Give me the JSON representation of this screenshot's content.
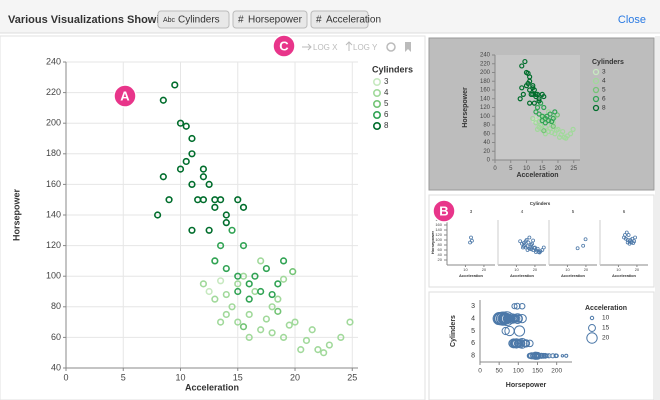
{
  "header": {
    "title": "Various Visualizations Showing",
    "fields": [
      {
        "icon": "Abc",
        "name": "Cylinders"
      },
      {
        "icon": "#",
        "name": "Horsepower"
      },
      {
        "icon": "#",
        "name": "Acceleration"
      }
    ],
    "close": "Close"
  },
  "toolbar": {
    "log_x": "LOG X",
    "log_y": "LOG Y"
  },
  "annotations": [
    "A",
    "B",
    "C"
  ],
  "chart_data": [
    {
      "type": "scatter",
      "x_label": "Acceleration",
      "y_label": "Horsepower",
      "legend_title": "Cylinders",
      "xlim": [
        0,
        25.5
      ],
      "xticks": [
        0,
        5,
        10,
        15,
        20,
        25
      ],
      "ylim": [
        40,
        240
      ],
      "yticks": [
        40,
        60,
        80,
        100,
        120,
        140,
        160,
        180,
        200,
        220,
        240
      ],
      "grid": true,
      "series": [
        {
          "name": "3",
          "color": "#c7e9c0",
          "x": [
            12.5,
            13.5,
            13
          ],
          "values": [
            90,
            97,
            110
          ]
        },
        {
          "name": "4",
          "color": "#a1d99b",
          "x": [
            14,
            15,
            16,
            17,
            18,
            19,
            20,
            21,
            22,
            15,
            16.5,
            14.5,
            17.5,
            19.5,
            21.5,
            23,
            24.8,
            13,
            12,
            16,
            18.5,
            20.5,
            15.5,
            17,
            14,
            19,
            22.5,
            24,
            13.5,
            18
          ],
          "values": [
            88,
            70,
            75,
            65,
            80,
            60,
            70,
            58,
            52,
            95,
            90,
            80,
            72,
            68,
            65,
            55,
            70,
            85,
            95,
            60,
            85,
            52,
            100,
            110,
            75,
            98,
            50,
            60,
            70,
            63
          ]
        },
        {
          "name": "5",
          "color": "#74c476",
          "x": [
            18.5,
            19.8,
            15.5
          ],
          "values": [
            77,
            103,
            67
          ]
        },
        {
          "name": "6",
          "color": "#31a354",
          "x": [
            13,
            14,
            15,
            16,
            17,
            18,
            15.5,
            16.5,
            19,
            14.5,
            13.5,
            17.5,
            18.5,
            16,
            15
          ],
          "values": [
            110,
            105,
            100,
            95,
            90,
            88,
            120,
            100,
            110,
            130,
            120,
            105,
            95,
            85,
            90
          ]
        },
        {
          "name": "8",
          "color": "#006d2c",
          "x": [
            9.5,
            8.5,
            10,
            11,
            10,
            10.5,
            11,
            12,
            8,
            9,
            11.5,
            12,
            12.5,
            13,
            13,
            14,
            10.5,
            11,
            12,
            13.5,
            8.5,
            14,
            15,
            15.5,
            11,
            12.5
          ],
          "values": [
            225,
            215,
            200,
            190,
            170,
            175,
            180,
            165,
            140,
            150,
            150,
            150,
            160,
            150,
            145,
            140,
            198,
            160,
            170,
            150,
            165,
            135,
            150,
            145,
            130,
            130
          ]
        }
      ]
    },
    {
      "type": "scatter",
      "x_label": "Acceleration",
      "y_label": "Horsepower",
      "legend_title": "Cylinders",
      "xlim": [
        0,
        27
      ],
      "xticks": [
        0,
        5,
        10,
        15,
        20,
        25
      ],
      "ylim": [
        0,
        240
      ],
      "yticks": [
        0,
        20,
        40,
        60,
        80,
        100,
        120,
        140,
        160,
        180,
        200,
        220,
        240
      ]
    },
    {
      "type": "faceted-scatter",
      "title": "Cylinders",
      "x_label": "Acceleration",
      "y_label": "Horsepower",
      "color": "#4c78a8",
      "xlim": [
        0,
        26
      ],
      "xticks": [
        10,
        20
      ],
      "ylim": [
        0,
        180
      ],
      "yticks": [
        20,
        40,
        60,
        80,
        100,
        120,
        140,
        160,
        180
      ]
    },
    {
      "type": "strip",
      "x_label": "Horsepower",
      "y_label": "Cylinders",
      "legend_title": "Acceleration",
      "color": "#4c78a8",
      "categories": [
        "3",
        "4",
        "5",
        "6",
        "8"
      ],
      "xlim": [
        0,
        240
      ],
      "xticks": [
        0,
        50,
        100,
        150,
        200
      ],
      "size_legend": [
        10,
        15,
        20
      ]
    }
  ]
}
